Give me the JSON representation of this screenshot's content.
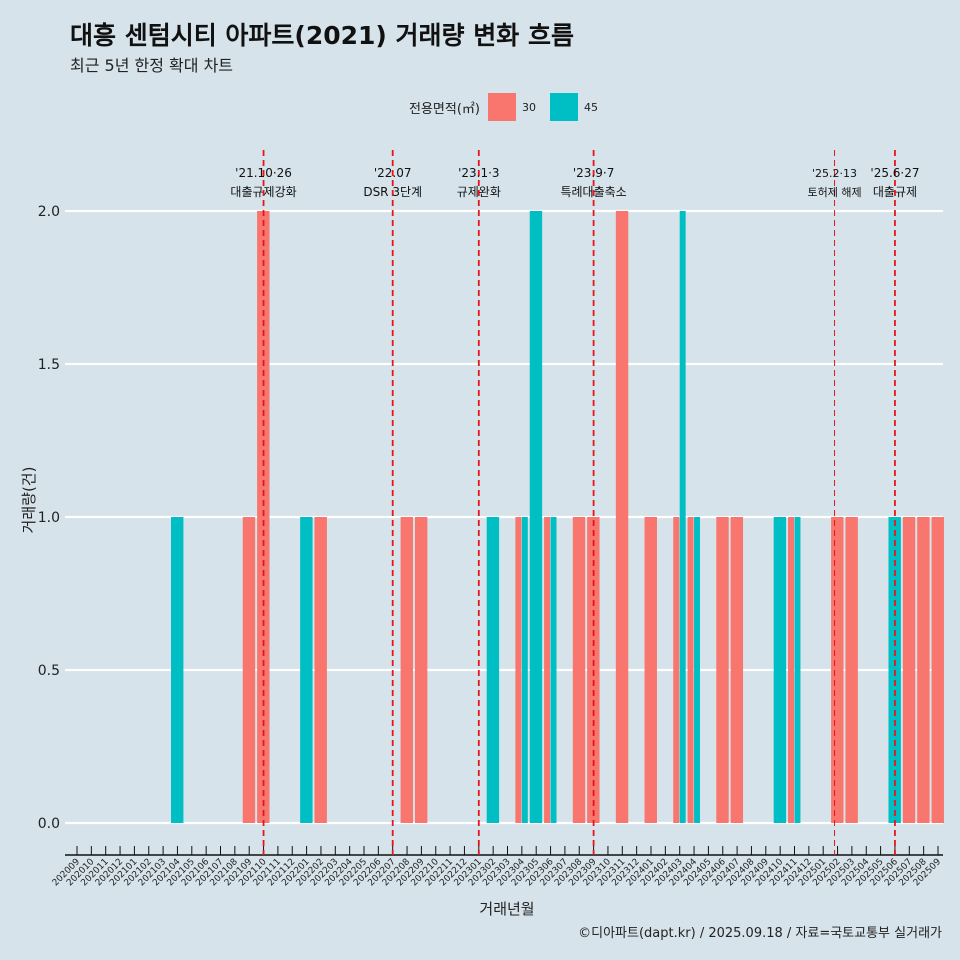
{
  "title": "대흥 센텀시티 아파트(2021) 거래량 변화 흐름",
  "subtitle": "최근 5년 한정 확대 차트",
  "caption": "©디아파트(dapt.kr) / 2025.09.18 / 자료=국토교통부 실거래가",
  "colors": {
    "30": "#f8766d",
    "45": "#00bfc4",
    "vline": "#e8141c"
  },
  "chart_data": {
    "type": "bar",
    "xlabel": "거래년월",
    "ylabel": "거래량(건)",
    "ylim": [
      0,
      2
    ],
    "yticks": [
      "0.0",
      "0.5",
      "1.0",
      "1.5",
      "2.0"
    ],
    "legend": {
      "title": "전용면적(㎡)",
      "entries": [
        "30",
        "45"
      ],
      "placement": "top"
    },
    "categories": [
      "202009",
      "202010",
      "202011",
      "202012",
      "202101",
      "202102",
      "202103",
      "202104",
      "202105",
      "202106",
      "202107",
      "202108",
      "202109",
      "202110",
      "202111",
      "202112",
      "202201",
      "202202",
      "202203",
      "202204",
      "202205",
      "202206",
      "202207",
      "202208",
      "202209",
      "202210",
      "202211",
      "202212",
      "202301",
      "202302",
      "202303",
      "202304",
      "202305",
      "202306",
      "202307",
      "202308",
      "202309",
      "202310",
      "202311",
      "202312",
      "202401",
      "202402",
      "202403",
      "202404",
      "202405",
      "202406",
      "202407",
      "202408",
      "202409",
      "202410",
      "202411",
      "202412",
      "202501",
      "202502",
      "202503",
      "202504",
      "202505",
      "202506",
      "202507",
      "202508",
      "202509"
    ],
    "series": [
      {
        "name": "30",
        "points": [
          [
            "202109",
            1
          ],
          [
            "202110",
            2
          ],
          [
            "202202",
            1
          ],
          [
            "202208",
            1
          ],
          [
            "202209",
            1
          ],
          [
            "202304",
            1
          ],
          [
            "202306",
            1
          ],
          [
            "202308",
            1
          ],
          [
            "202309",
            1
          ],
          [
            "202311",
            2
          ],
          [
            "202401",
            1
          ],
          [
            "202403",
            1
          ],
          [
            "202404",
            1
          ],
          [
            "202406",
            1
          ],
          [
            "202407",
            1
          ],
          [
            "202411",
            1
          ],
          [
            "202502",
            1
          ],
          [
            "202503",
            1
          ],
          [
            "202507",
            1
          ],
          [
            "202508",
            1
          ],
          [
            "202509",
            1
          ]
        ]
      },
      {
        "name": "45",
        "points": [
          [
            "202104",
            1
          ],
          [
            "202201",
            1
          ],
          [
            "202302",
            1
          ],
          [
            "202304",
            1
          ],
          [
            "202305",
            2
          ],
          [
            "202306",
            1
          ],
          [
            "202403",
            2
          ],
          [
            "202404",
            1
          ],
          [
            "202410",
            1
          ],
          [
            "202411",
            1
          ],
          [
            "202506",
            1
          ]
        ]
      }
    ],
    "annotations": [
      {
        "month": "202110",
        "date": "'21.10·26",
        "label": "대출규제강화"
      },
      {
        "month": "202207",
        "date": "'22.07",
        "label": "DSR 3단계"
      },
      {
        "month": "202301",
        "date": "'23.1·3",
        "label": "규제완화"
      },
      {
        "month": "202309",
        "date": "'23.9·7",
        "label": "특례대출축소"
      },
      {
        "month": "202502",
        "date": "'25.2·13",
        "label": "토허제 해제",
        "minor": true
      },
      {
        "month": "202506",
        "date": "'25.6·27",
        "label": "대출규제"
      }
    ]
  }
}
